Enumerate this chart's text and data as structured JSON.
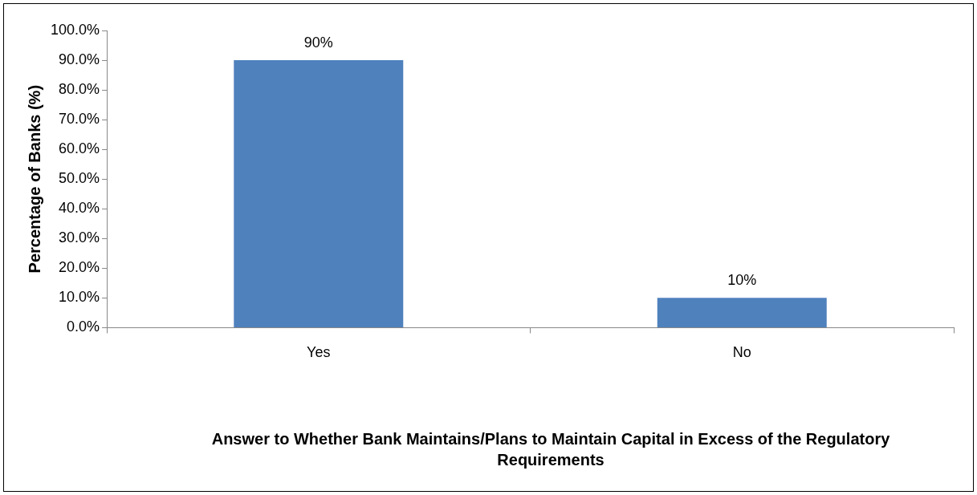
{
  "chart_data": {
    "type": "bar",
    "xlabel": "Answer to Whether Bank Maintains/Plans to Maintain Capital in Excess of the Regulatory Requirements",
    "ylabel": "Percentage of Banks (%)",
    "categories": [
      "Yes",
      "No"
    ],
    "values": [
      90,
      10
    ],
    "value_labels": [
      "90%",
      "10%"
    ],
    "color": "#4f81bd",
    "ylim": [
      0,
      100
    ],
    "yticks": [
      {
        "value": 0,
        "label": "0.0%"
      },
      {
        "value": 10,
        "label": "10.0%"
      },
      {
        "value": 20,
        "label": "20.0%"
      },
      {
        "value": 30,
        "label": "30.0%"
      },
      {
        "value": 40,
        "label": "40.0%"
      },
      {
        "value": 50,
        "label": "50.0%"
      },
      {
        "value": 60,
        "label": "60.0%"
      },
      {
        "value": 70,
        "label": "70.0%"
      },
      {
        "value": 80,
        "label": "80.0%"
      },
      {
        "value": 90,
        "label": "90.0%"
      },
      {
        "value": 100,
        "label": "100.0%"
      }
    ],
    "grid": false,
    "legend": false
  }
}
